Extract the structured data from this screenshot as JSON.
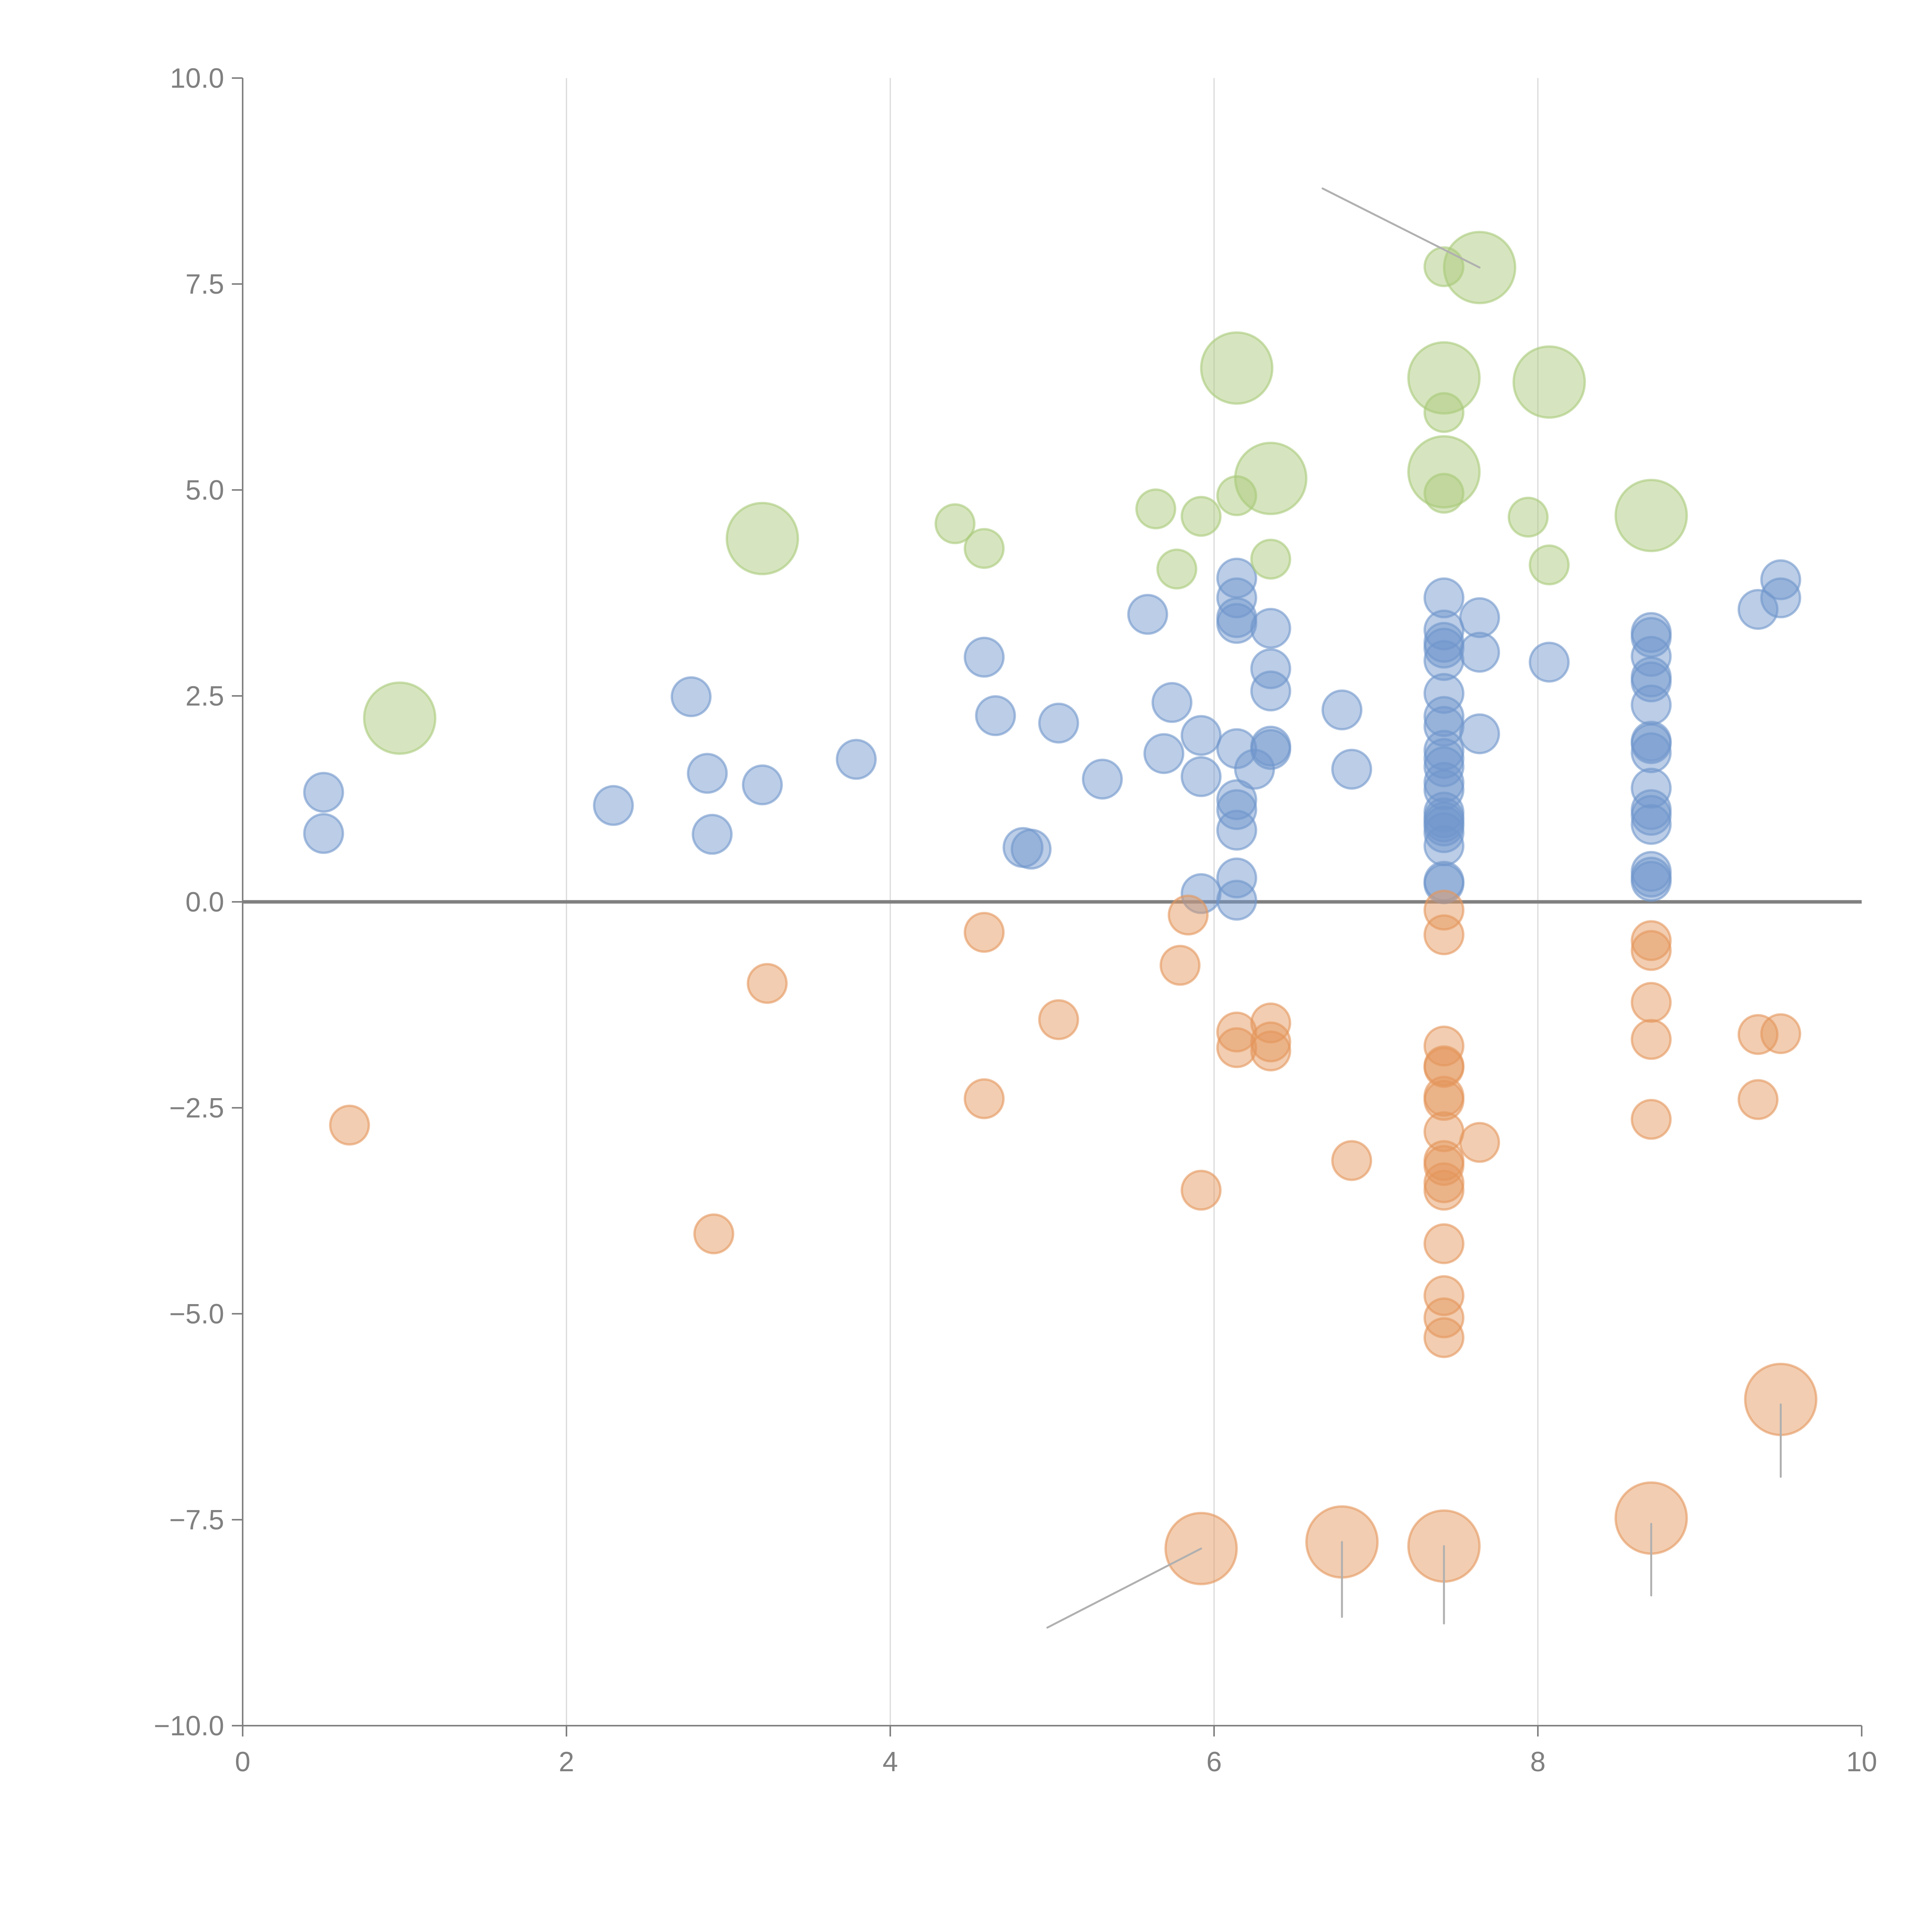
{
  "chart_data": {
    "type": "scatter",
    "subtype": "bubble",
    "title": "",
    "xlabel": "",
    "ylabel": "",
    "xlim": [
      0,
      10
    ],
    "ylim": [
      -10,
      10
    ],
    "x_ticks": [
      0,
      2,
      4,
      6,
      8,
      10
    ],
    "x_tick_labels": [
      "0",
      "2",
      "4",
      "6",
      "8",
      "10"
    ],
    "y_ticks": [
      10,
      7.5,
      5,
      2.5,
      0,
      -2.5,
      -5,
      -7.5,
      -10
    ],
    "y_tick_labels": [
      "10.0",
      "7.5",
      "5.0",
      "2.5",
      "0.0",
      "−2.5",
      "−5.0",
      "−7.5",
      "−10.0"
    ],
    "grid": "vertical lines at x ticks",
    "zero_line": true,
    "legend": "none",
    "colors": {
      "blue": "#7096cc",
      "green": "#a9c97a",
      "orange": "#e4965c",
      "axis": "#808080",
      "grid": "#d9d9d9",
      "leader": "#b0b0b0"
    },
    "series": [
      {
        "name": "blue",
        "size": "small",
        "points": [
          [
            0.5,
            1.33
          ],
          [
            0.5,
            0.83
          ],
          [
            2.29,
            1.17
          ],
          [
            2.77,
            2.49
          ],
          [
            2.87,
            1.56
          ],
          [
            2.9,
            0.82
          ],
          [
            3.21,
            1.42
          ],
          [
            3.79,
            1.73
          ],
          [
            4.58,
            2.97
          ],
          [
            4.65,
            2.26
          ],
          [
            4.82,
            0.66
          ],
          [
            4.87,
            0.64
          ],
          [
            5.04,
            2.17
          ],
          [
            5.31,
            1.49
          ],
          [
            5.59,
            3.49
          ],
          [
            5.69,
            1.8
          ],
          [
            5.74,
            2.42
          ],
          [
            5.92,
            2.02
          ],
          [
            5.92,
            1.52
          ],
          [
            5.92,
            0.1
          ],
          [
            6.14,
            3.93
          ],
          [
            6.14,
            3.69
          ],
          [
            6.14,
            3.45
          ],
          [
            6.14,
            3.38
          ],
          [
            6.14,
            1.86
          ],
          [
            6.14,
            1.24
          ],
          [
            6.14,
            1.12
          ],
          [
            6.14,
            0.87
          ],
          [
            6.14,
            0.29
          ],
          [
            6.14,
            0.02
          ],
          [
            6.25,
            1.61
          ],
          [
            6.35,
            3.32
          ],
          [
            6.35,
            2.83
          ],
          [
            6.35,
            2.56
          ],
          [
            6.35,
            1.89
          ],
          [
            6.35,
            1.85
          ],
          [
            6.79,
            2.33
          ],
          [
            6.85,
            1.61
          ],
          [
            7.42,
            3.69
          ],
          [
            7.42,
            3.3
          ],
          [
            7.42,
            3.15
          ],
          [
            7.42,
            3.08
          ],
          [
            7.42,
            2.93
          ],
          [
            7.42,
            2.53
          ],
          [
            7.42,
            2.25
          ],
          [
            7.42,
            2.13
          ],
          [
            7.42,
            1.84
          ],
          [
            7.42,
            1.74
          ],
          [
            7.42,
            1.64
          ],
          [
            7.42,
            1.45
          ],
          [
            7.42,
            1.36
          ],
          [
            7.42,
            1.09
          ],
          [
            7.42,
            1.02
          ],
          [
            7.42,
            0.97
          ],
          [
            7.42,
            0.92
          ],
          [
            7.42,
            0.84
          ],
          [
            7.42,
            0.68
          ],
          [
            7.42,
            0.25
          ],
          [
            7.42,
            0.22
          ],
          [
            7.64,
            3.45
          ],
          [
            7.64,
            3.03
          ],
          [
            7.64,
            2.04
          ],
          [
            8.07,
            2.91
          ],
          [
            8.7,
            3.27
          ],
          [
            8.7,
            3.21
          ],
          [
            8.7,
            2.98
          ],
          [
            8.7,
            2.73
          ],
          [
            8.7,
            2.67
          ],
          [
            8.7,
            2.39
          ],
          [
            8.7,
            1.95
          ],
          [
            8.7,
            1.92
          ],
          [
            8.7,
            1.81
          ],
          [
            8.7,
            1.38
          ],
          [
            8.7,
            1.12
          ],
          [
            8.7,
            1.05
          ],
          [
            8.7,
            0.94
          ],
          [
            8.7,
            0.37
          ],
          [
            8.7,
            0.3
          ],
          [
            8.7,
            0.25
          ],
          [
            9.36,
            3.55
          ],
          [
            9.5,
            3.91
          ],
          [
            9.5,
            3.69
          ]
        ]
      },
      {
        "name": "green",
        "points": [
          {
            "x": 0.97,
            "y": 2.23,
            "size": "large"
          },
          {
            "x": 3.21,
            "y": 4.41,
            "size": "large"
          },
          {
            "x": 4.4,
            "y": 4.59,
            "size": "small"
          },
          {
            "x": 4.58,
            "y": 4.29,
            "size": "small"
          },
          {
            "x": 5.64,
            "y": 4.77,
            "size": "small"
          },
          {
            "x": 5.77,
            "y": 4.04,
            "size": "small"
          },
          {
            "x": 5.92,
            "y": 4.68,
            "size": "small"
          },
          {
            "x": 6.14,
            "y": 4.93,
            "size": "small"
          },
          {
            "x": 6.14,
            "y": 6.48,
            "size": "large"
          },
          {
            "x": 6.35,
            "y": 5.14,
            "size": "large"
          },
          {
            "x": 6.35,
            "y": 4.16,
            "size": "small"
          },
          {
            "x": 7.42,
            "y": 7.71,
            "size": "small"
          },
          {
            "x": 7.64,
            "y": 7.7,
            "size": "large"
          },
          {
            "x": 7.42,
            "y": 6.36,
            "size": "large"
          },
          {
            "x": 7.42,
            "y": 5.94,
            "size": "small"
          },
          {
            "x": 7.42,
            "y": 5.22,
            "size": "large"
          },
          {
            "x": 7.42,
            "y": 4.96,
            "size": "small"
          },
          {
            "x": 7.94,
            "y": 4.67,
            "size": "small"
          },
          {
            "x": 8.07,
            "y": 6.31,
            "size": "large"
          },
          {
            "x": 8.07,
            "y": 4.09,
            "size": "small"
          },
          {
            "x": 8.7,
            "y": 4.69,
            "size": "large"
          }
        ]
      },
      {
        "name": "orange",
        "points": [
          {
            "x": 0.66,
            "y": -2.71,
            "size": "small"
          },
          {
            "x": 2.91,
            "y": -4.03,
            "size": "small"
          },
          {
            "x": 3.24,
            "y": -0.99,
            "size": "small"
          },
          {
            "x": 4.58,
            "y": -0.37,
            "size": "small"
          },
          {
            "x": 4.58,
            "y": -2.39,
            "size": "small"
          },
          {
            "x": 5.04,
            "y": -1.43,
            "size": "small"
          },
          {
            "x": 5.79,
            "y": -0.77,
            "size": "small"
          },
          {
            "x": 5.84,
            "y": -0.16,
            "size": "small"
          },
          {
            "x": 5.92,
            "y": -3.5,
            "size": "small"
          },
          {
            "x": 6.14,
            "y": -1.58,
            "size": "small"
          },
          {
            "x": 6.14,
            "y": -1.77,
            "size": "small"
          },
          {
            "x": 6.35,
            "y": -1.47,
            "size": "small"
          },
          {
            "x": 6.35,
            "y": -1.7,
            "size": "small"
          },
          {
            "x": 6.35,
            "y": -1.81,
            "size": "small"
          },
          {
            "x": 6.85,
            "y": -3.14,
            "size": "small"
          },
          {
            "x": 7.42,
            "y": -0.1,
            "size": "small"
          },
          {
            "x": 7.42,
            "y": -0.4,
            "size": "small"
          },
          {
            "x": 7.42,
            "y": -1.75,
            "size": "small"
          },
          {
            "x": 7.42,
            "y": -1.99,
            "size": "small"
          },
          {
            "x": 7.42,
            "y": -2.01,
            "size": "small"
          },
          {
            "x": 7.42,
            "y": -2.36,
            "size": "small"
          },
          {
            "x": 7.42,
            "y": -2.41,
            "size": "small"
          },
          {
            "x": 7.42,
            "y": -2.79,
            "size": "small"
          },
          {
            "x": 7.42,
            "y": -3.14,
            "size": "small"
          },
          {
            "x": 7.42,
            "y": -3.2,
            "size": "small"
          },
          {
            "x": 7.42,
            "y": -3.41,
            "size": "small"
          },
          {
            "x": 7.42,
            "y": -3.5,
            "size": "small"
          },
          {
            "x": 7.42,
            "y": -4.15,
            "size": "small"
          },
          {
            "x": 7.42,
            "y": -4.78,
            "size": "small"
          },
          {
            "x": 7.42,
            "y": -5.05,
            "size": "small"
          },
          {
            "x": 7.42,
            "y": -5.29,
            "size": "small"
          },
          {
            "x": 7.64,
            "y": -2.92,
            "size": "small"
          },
          {
            "x": 8.7,
            "y": -0.47,
            "size": "small"
          },
          {
            "x": 8.7,
            "y": -0.59,
            "size": "small"
          },
          {
            "x": 8.7,
            "y": -1.22,
            "size": "small"
          },
          {
            "x": 8.7,
            "y": -1.67,
            "size": "small"
          },
          {
            "x": 8.7,
            "y": -2.64,
            "size": "small"
          },
          {
            "x": 9.36,
            "y": -1.61,
            "size": "small"
          },
          {
            "x": 9.36,
            "y": -2.4,
            "size": "small"
          },
          {
            "x": 9.5,
            "y": -1.6,
            "size": "small"
          },
          {
            "x": 5.92,
            "y": -7.85,
            "size": "large"
          },
          {
            "x": 6.79,
            "y": -7.77,
            "size": "large"
          },
          {
            "x": 7.42,
            "y": -7.82,
            "size": "large"
          },
          {
            "x": 8.7,
            "y": -7.48,
            "size": "large"
          },
          {
            "x": 9.5,
            "y": -6.04,
            "size": "large"
          }
        ]
      }
    ],
    "leader_lines": [
      {
        "from": [
          6.67,
          8.66
        ],
        "to": [
          7.64,
          7.7
        ]
      },
      {
        "from": [
          4.97,
          -8.81
        ],
        "to": [
          5.92,
          -7.85
        ]
      },
      {
        "from": [
          6.79,
          -7.77
        ],
        "to": [
          6.79,
          -8.68
        ]
      },
      {
        "from": [
          7.42,
          -7.82
        ],
        "to": [
          7.42,
          -8.76
        ]
      },
      {
        "from": [
          8.7,
          -7.55
        ],
        "to": [
          8.7,
          -8.42
        ]
      },
      {
        "from": [
          9.5,
          -6.1
        ],
        "to": [
          9.5,
          -6.98
        ]
      }
    ]
  }
}
